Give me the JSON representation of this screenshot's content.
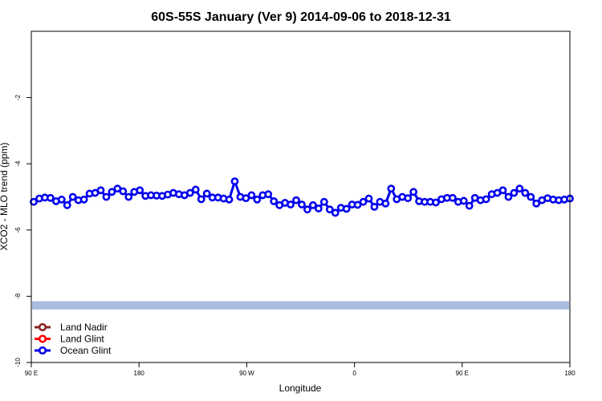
{
  "chart_data": {
    "type": "line",
    "title": "60S-55S January (Ver 9)   2014-09-06 to 2018-12-31",
    "xlabel": "Longitude",
    "ylabel": "XCO2 - MLO trend (ppm)",
    "xlim": [
      0,
      270
    ],
    "ylim": [
      -10,
      0
    ],
    "x_ticks": [
      {
        "value": 0,
        "label": "90 E"
      },
      {
        "value": 54,
        "label": "180"
      },
      {
        "value": 108,
        "label": "90 W"
      },
      {
        "value": 162,
        "label": "0"
      },
      {
        "value": 216,
        "label": "90 E"
      },
      {
        "value": 270,
        "label": "180"
      }
    ],
    "y_ticks": [
      {
        "value": -2,
        "label": "-2"
      },
      {
        "value": -4,
        "label": "-4"
      },
      {
        "value": -6,
        "label": "-6"
      },
      {
        "value": -8,
        "label": "-8"
      },
      {
        "value": -10,
        "label": "-10"
      }
    ],
    "band": {
      "y_from": -8.4,
      "y_to": -8.15,
      "color": "#a8bde0"
    },
    "legend_position": "bottom-left",
    "series": [
      {
        "name": "Land Nadir",
        "color": "#8b2323",
        "x": [],
        "y": []
      },
      {
        "name": "Land Glint",
        "color": "#ff0000",
        "x": [],
        "y": []
      },
      {
        "name": "Ocean Glint",
        "color": "#0000ee",
        "x": [
          1.2,
          4.0,
          6.8,
          9.6,
          12.4,
          15.2,
          18.0,
          20.8,
          23.6,
          26.4,
          29.2,
          32.0,
          34.8,
          37.6,
          40.4,
          43.2,
          46.0,
          48.8,
          51.6,
          54.4,
          57.2,
          60.0,
          62.8,
          65.6,
          68.4,
          71.2,
          74.0,
          76.8,
          79.6,
          82.4,
          85.2,
          88.0,
          90.8,
          93.6,
          96.4,
          99.2,
          102.0,
          104.8,
          107.6,
          110.4,
          113.2,
          116.0,
          118.8,
          121.6,
          124.4,
          127.2,
          130.0,
          132.8,
          135.6,
          138.4,
          141.2,
          144.0,
          146.8,
          149.6,
          152.4,
          155.2,
          158.0,
          160.8,
          163.6,
          166.4,
          169.2,
          172.0,
          174.8,
          177.6,
          180.4,
          183.2,
          186.0,
          188.8,
          191.6,
          194.4,
          197.2,
          200.0,
          202.8,
          205.6,
          208.4,
          211.2,
          214.0,
          216.8,
          219.6,
          222.4,
          225.2,
          228.0,
          230.8,
          233.6,
          236.4,
          239.2,
          242.0,
          244.8,
          247.6,
          250.4,
          253.2,
          256.0,
          258.8,
          261.6,
          264.4,
          267.2,
          270.0
        ],
        "y": [
          -5.15,
          -5.05,
          -5.02,
          -5.03,
          -5.13,
          -5.08,
          -5.25,
          -5.0,
          -5.1,
          -5.08,
          -4.9,
          -4.88,
          -4.8,
          -5.0,
          -4.85,
          -4.75,
          -4.83,
          -5.0,
          -4.85,
          -4.8,
          -4.97,
          -4.95,
          -4.96,
          -4.97,
          -4.93,
          -4.88,
          -4.92,
          -4.95,
          -4.88,
          -4.78,
          -5.07,
          -4.9,
          -5.02,
          -5.02,
          -5.05,
          -5.08,
          -4.53,
          -5.0,
          -5.04,
          -4.95,
          -5.08,
          -4.95,
          -4.92,
          -5.13,
          -5.25,
          -5.18,
          -5.23,
          -5.1,
          -5.23,
          -5.38,
          -5.25,
          -5.35,
          -5.15,
          -5.38,
          -5.48,
          -5.33,
          -5.36,
          -5.23,
          -5.24,
          -5.15,
          -5.05,
          -5.3,
          -5.15,
          -5.2,
          -4.75,
          -5.07,
          -5.0,
          -5.04,
          -4.85,
          -5.13,
          -5.15,
          -5.15,
          -5.17,
          -5.07,
          -5.03,
          -5.03,
          -5.15,
          -5.12,
          -5.27,
          -5.03,
          -5.1,
          -5.07,
          -4.92,
          -4.88,
          -4.8,
          -5.0,
          -4.88,
          -4.75,
          -4.88,
          -5.0,
          -5.2,
          -5.1,
          -5.04,
          -5.08,
          -5.1,
          -5.08,
          -5.05
        ]
      }
    ]
  }
}
